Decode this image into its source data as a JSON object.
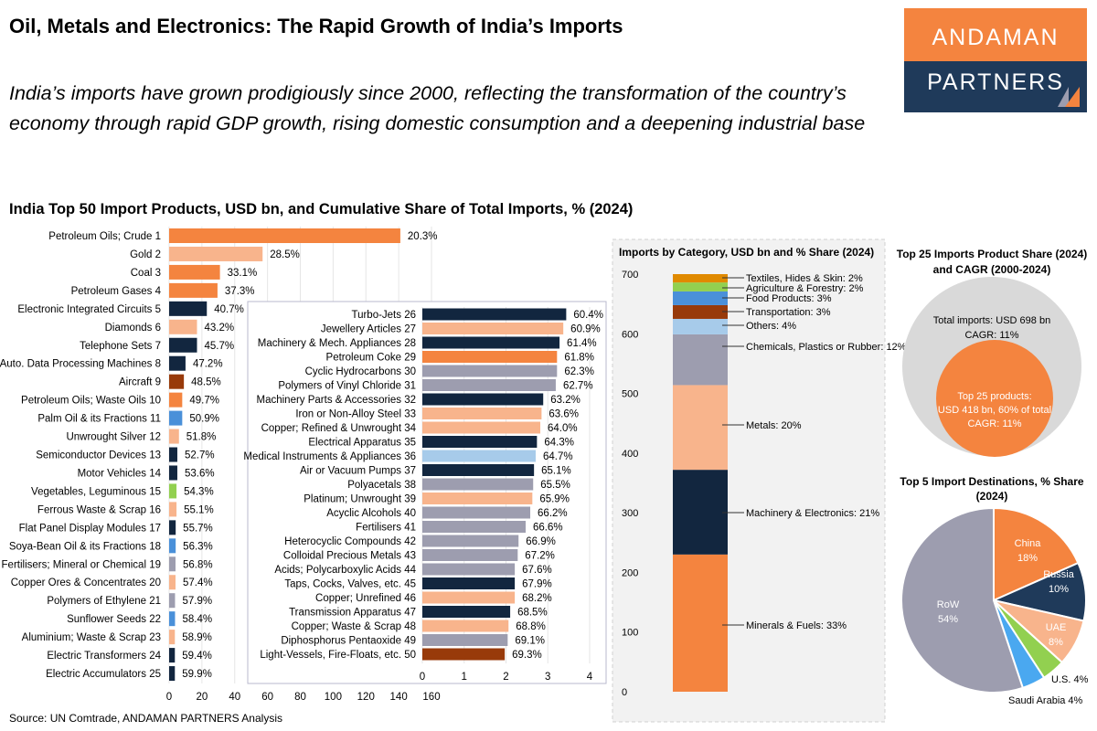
{
  "header": {
    "title": "Oil, Metals and Electronics: The Rapid Growth of India’s Imports",
    "subtitle_line1": "India’s imports have grown prodigiously since 2000, reflecting the transformation of the country’s",
    "subtitle_line2": "economy through rapid GDP growth, rising domestic consumption and a deepening industrial base",
    "logo_top": "ANDAMAN",
    "logo_bottom": "PARTNERS"
  },
  "source": "Source: UN Comtrade, ANDAMAN PARTNERS Analysis",
  "colors": {
    "Minerals & Fuels": "#F4843F",
    "Metals": "#F8B48C",
    "Machinery & Electronics": "#12263F",
    "Chemicals, Plastics or Rubber": "#9D9DAF",
    "Others": "#A7CBEA",
    "Transportation": "#983A0A",
    "Food Products": "#4A90D9",
    "Agriculture & Forestry": "#92D050",
    "Textiles, Hides & Skin": "#E08A00",
    "grey_circle": "#D9D9D9",
    "China": "#F4843F",
    "Russia": "#1F3A5A",
    "UAE": "#F8B48C",
    "U.S.": "#92D050",
    "Saudi Arabia": "#4AA8F0",
    "RoW": "#9D9DAF"
  },
  "chart_data": [
    {
      "type": "bar",
      "orientation": "horizontal",
      "title": "India Top 50 Import Products, USD bn, and Cumulative Share of Total Imports, % (2024)",
      "xlim": [
        0,
        160
      ],
      "xticks": [
        0,
        20,
        40,
        60,
        80,
        100,
        120,
        140,
        160
      ],
      "grid": true,
      "items": [
        {
          "label": "Petroleum Oils; Crude 1",
          "value": 141,
          "cum": "20.3%",
          "category": "Minerals & Fuels"
        },
        {
          "label": "Gold 2",
          "value": 57,
          "cum": "28.5%",
          "category": "Metals"
        },
        {
          "label": "Coal 3",
          "value": 31,
          "cum": "33.1%",
          "category": "Minerals & Fuels"
        },
        {
          "label": "Petroleum Gases 4",
          "value": 29.5,
          "cum": "37.3%",
          "category": "Minerals & Fuels"
        },
        {
          "label": "Electronic Integrated Circuits 5",
          "value": 23,
          "cum": "40.7%",
          "category": "Machinery & Electronics"
        },
        {
          "label": "Diamonds 6",
          "value": 17,
          "cum": "43.2%",
          "category": "Metals"
        },
        {
          "label": "Telephone Sets 7",
          "value": 17,
          "cum": "45.7%",
          "category": "Machinery & Electronics"
        },
        {
          "label": "Auto. Data Processing Machines 8",
          "value": 10,
          "cum": "47.2%",
          "category": "Machinery & Electronics"
        },
        {
          "label": "Aircraft 9",
          "value": 9,
          "cum": "48.5%",
          "category": "Transportation"
        },
        {
          "label": "Petroleum Oils; Waste Oils 10",
          "value": 8,
          "cum": "49.7%",
          "category": "Minerals & Fuels"
        },
        {
          "label": "Palm Oil & its Fractions 11",
          "value": 8,
          "cum": "50.9%",
          "category": "Food Products"
        },
        {
          "label": "Unwrought Silver 12",
          "value": 6,
          "cum": "51.8%",
          "category": "Metals"
        },
        {
          "label": "Semiconductor Devices 13",
          "value": 5,
          "cum": "52.7%",
          "category": "Machinery & Electronics"
        },
        {
          "label": "Motor Vehicles 14",
          "value": 5,
          "cum": "53.6%",
          "category": "Machinery & Electronics"
        },
        {
          "label": "Vegetables, Leguminous 15",
          "value": 4.5,
          "cum": "54.3%",
          "category": "Agriculture & Forestry"
        },
        {
          "label": "Ferrous Waste & Scrap 16",
          "value": 4.5,
          "cum": "55.1%",
          "category": "Metals"
        },
        {
          "label": "Flat Panel Display Modules 17",
          "value": 4,
          "cum": "55.7%",
          "category": "Machinery & Electronics"
        },
        {
          "label": "Soya-Bean Oil & its Fractions 18",
          "value": 4,
          "cum": "56.3%",
          "category": "Food Products"
        },
        {
          "label": "Fertilisers; Mineral or Chemical 19",
          "value": 3.9,
          "cum": "56.8%",
          "category": "Chemicals, Plastics or Rubber"
        },
        {
          "label": "Copper Ores & Concentrates 20",
          "value": 3.9,
          "cum": "57.4%",
          "category": "Metals"
        },
        {
          "label": "Polymers of Ethylene 21",
          "value": 3.6,
          "cum": "57.9%",
          "category": "Chemicals, Plastics or Rubber"
        },
        {
          "label": "Sunflower Seeds 22",
          "value": 3.6,
          "cum": "58.4%",
          "category": "Food Products"
        },
        {
          "label": "Aluminium; Waste & Scrap 23",
          "value": 3.5,
          "cum": "58.9%",
          "category": "Metals"
        },
        {
          "label": "Electric Transformers 24",
          "value": 3.5,
          "cum": "59.4%",
          "category": "Machinery & Electronics"
        },
        {
          "label": "Electric Accumulators 25",
          "value": 3.5,
          "cum": "59.9%",
          "category": "Machinery & Electronics"
        }
      ]
    },
    {
      "type": "bar",
      "orientation": "horizontal",
      "inset": true,
      "xlim": [
        0,
        4
      ],
      "xticks": [
        0,
        1,
        2,
        3,
        4
      ],
      "grid": true,
      "items": [
        {
          "label": "Turbo-Jets 26",
          "value": 3.44,
          "cum": "60.4%",
          "category": "Machinery & Electronics"
        },
        {
          "label": "Jewellery Articles 27",
          "value": 3.37,
          "cum": "60.9%",
          "category": "Metals"
        },
        {
          "label": "Machinery & Mech. Appliances 28",
          "value": 3.28,
          "cum": "61.4%",
          "category": "Machinery & Electronics"
        },
        {
          "label": "Petroleum Coke 29",
          "value": 3.22,
          "cum": "61.8%",
          "category": "Minerals & Fuels"
        },
        {
          "label": "Cyclic Hydrocarbons 30",
          "value": 3.22,
          "cum": "62.3%",
          "category": "Chemicals, Plastics or Rubber"
        },
        {
          "label": "Polymers of Vinyl Chloride 31",
          "value": 3.19,
          "cum": "62.7%",
          "category": "Chemicals, Plastics or Rubber"
        },
        {
          "label": "Machinery Parts & Accessories 32",
          "value": 2.89,
          "cum": "63.2%",
          "category": "Machinery & Electronics"
        },
        {
          "label": "Iron or Non-Alloy Steel 33",
          "value": 2.85,
          "cum": "63.6%",
          "category": "Metals"
        },
        {
          "label": "Copper; Refined & Unwrought 34",
          "value": 2.82,
          "cum": "64.0%",
          "category": "Metals"
        },
        {
          "label": "Electrical Apparatus 35",
          "value": 2.74,
          "cum": "64.3%",
          "category": "Machinery & Electronics"
        },
        {
          "label": "Medical Instruments & Appliances 36",
          "value": 2.71,
          "cum": "64.7%",
          "category": "Others"
        },
        {
          "label": "Air or Vacuum Pumps 37",
          "value": 2.67,
          "cum": "65.1%",
          "category": "Machinery & Electronics"
        },
        {
          "label": "Polyacetals 38",
          "value": 2.65,
          "cum": "65.5%",
          "category": "Chemicals, Plastics or Rubber"
        },
        {
          "label": "Platinum; Unwrought  39",
          "value": 2.63,
          "cum": "65.9%",
          "category": "Metals"
        },
        {
          "label": "Acyclic Alcohols 40",
          "value": 2.58,
          "cum": "66.2%",
          "category": "Chemicals, Plastics or Rubber"
        },
        {
          "label": "Fertilisers 41",
          "value": 2.47,
          "cum": "66.6%",
          "category": "Chemicals, Plastics or Rubber"
        },
        {
          "label": "Heterocyclic Compounds 42",
          "value": 2.3,
          "cum": "66.9%",
          "category": "Chemicals, Plastics or Rubber"
        },
        {
          "label": "Colloidal Precious Metals 43",
          "value": 2.28,
          "cum": "67.2%",
          "category": "Chemicals, Plastics or Rubber"
        },
        {
          "label": "Acids; Polycarboxylic Acids 44",
          "value": 2.21,
          "cum": "67.6%",
          "category": "Chemicals, Plastics or Rubber"
        },
        {
          "label": "Taps, Cocks, Valves, etc. 45",
          "value": 2.21,
          "cum": "67.9%",
          "category": "Machinery & Electronics"
        },
        {
          "label": "Copper; Unrefined 46",
          "value": 2.21,
          "cum": "68.2%",
          "category": "Metals"
        },
        {
          "label": "Transmission Apparatus 47",
          "value": 2.1,
          "cum": "68.5%",
          "category": "Machinery & Electronics"
        },
        {
          "label": "Copper; Waste & Scrap 48",
          "value": 2.06,
          "cum": "68.8%",
          "category": "Metals"
        },
        {
          "label": "Diphosphorus Pentaoxide 49",
          "value": 2.04,
          "cum": "69.1%",
          "category": "Chemicals, Plastics or Rubber"
        },
        {
          "label": "Light-Vessels, Fire-Floats, etc. 50",
          "value": 1.97,
          "cum": "69.3%",
          "category": "Transportation"
        }
      ]
    },
    {
      "type": "bar",
      "stacked": true,
      "title": "Imports by Category, USD bn and % Share (2024)",
      "ylim": [
        0,
        700
      ],
      "yticks": [
        0,
        100,
        200,
        300,
        400,
        500,
        600,
        700
      ],
      "segments": [
        {
          "name": "Minerals & Fuels",
          "value": 230,
          "label": "Minerals & Fuels: 33%"
        },
        {
          "name": "Machinery & Electronics",
          "value": 142,
          "label": "Machinery & Electronics: 21%"
        },
        {
          "name": "Metals",
          "value": 142,
          "label": "Metals: 20%"
        },
        {
          "name": "Chemicals, Plastics or Rubber",
          "value": 85,
          "label": "Chemicals, Plastics or Rubber: 12%"
        },
        {
          "name": "Others",
          "value": 26,
          "label": "Others: 4%"
        },
        {
          "name": "Transportation",
          "value": 23,
          "label": "Transportation: 3%"
        },
        {
          "name": "Food Products",
          "value": 23,
          "label": "Food Products: 3%"
        },
        {
          "name": "Agriculture & Forestry",
          "value": 15,
          "label": "Agriculture & Forestry: 2%"
        },
        {
          "name": "Textiles, Hides & Skin",
          "value": 14,
          "label": "Textiles, Hides & Skin: 2%"
        }
      ]
    },
    {
      "type": "bubble",
      "title_line1": "Top 25 Imports Product Share (2024)",
      "title_line2": "and CAGR (2000-2024)",
      "outer": {
        "value": 698,
        "line1": "Total imports: USD 698 bn",
        "line2": "CAGR: 11%"
      },
      "inner": {
        "value": 418,
        "line1": "Top 25 products:",
        "line2": "USD 418 bn, 60% of total",
        "line3": "CAGR: 11%"
      }
    },
    {
      "type": "pie",
      "title_line1": "Top 5 Import Destinations, % Share",
      "title_line2": "(2024)",
      "slices": [
        {
          "name": "China",
          "value": 18,
          "label": "18%"
        },
        {
          "name": "Russia",
          "value": 10,
          "label": "10%"
        },
        {
          "name": "UAE",
          "value": 8,
          "label": "8%"
        },
        {
          "name": "U.S.",
          "value": 4,
          "label": "U.S. 4%"
        },
        {
          "name": "Saudi Arabia",
          "value": 4,
          "label": "Saudi Arabia 4%"
        },
        {
          "name": "RoW",
          "value": 54,
          "label": "54%"
        }
      ]
    }
  ]
}
